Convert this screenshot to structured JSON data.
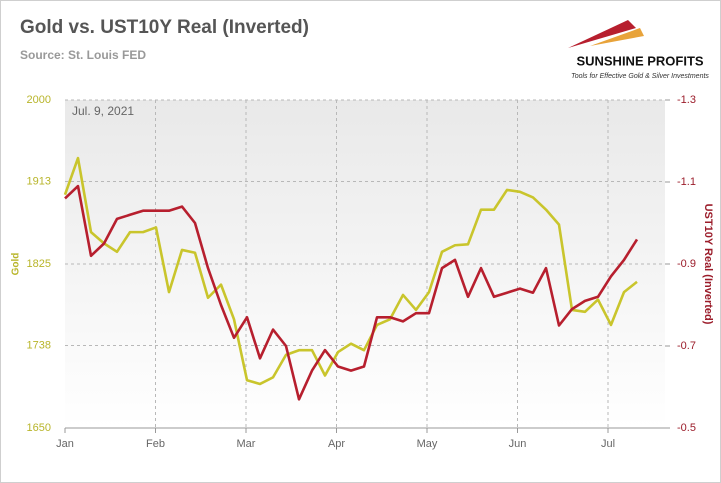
{
  "chart_data": {
    "type": "line",
    "title": "Gold vs. UST10Y Real (Inverted)",
    "subtitle": "Source: St. Louis FED",
    "annotation": "Jul. 9, 2021",
    "logo": "SUNSHINE PROFITS",
    "logo_tagline": "Tools for Effective Gold & Silver Investments",
    "ylabel": "Gold",
    "y2label": "UST10Y Real (Inverted)",
    "x_labels": [
      "Jan",
      "Feb",
      "Mar",
      "Apr",
      "May",
      "Jun",
      "Jul"
    ],
    "ylim": [
      1650,
      2000
    ],
    "yticks": [
      1650,
      1738,
      1825,
      1913,
      2000
    ],
    "y2lim": [
      -0.5,
      -1.3
    ],
    "y2ticks": [
      -0.5,
      -0.7,
      -0.9,
      -1.1,
      -1.3
    ],
    "grid": true,
    "series": [
      {
        "name": "Gold",
        "color": "#c9c52c",
        "values": [
          1899,
          1938,
          1859,
          1847,
          1838,
          1859,
          1859,
          1864,
          1795,
          1840,
          1837,
          1789,
          1803,
          1766,
          1701,
          1697,
          1704,
          1728,
          1733,
          1733,
          1706,
          1731,
          1740,
          1733,
          1760,
          1766,
          1792,
          1776,
          1795,
          1838,
          1845,
          1846,
          1883,
          1883,
          1904,
          1902,
          1896,
          1883,
          1867,
          1776,
          1774,
          1787,
          1760,
          1795,
          1806
        ]
      },
      {
        "name": "UST10Y Real (Inverted)",
        "color": "#b71f2e",
        "axis": "y2",
        "values": [
          -1.06,
          -1.09,
          -0.92,
          -0.95,
          -1.01,
          -1.02,
          -1.03,
          -1.03,
          -1.03,
          -1.04,
          -1.0,
          -0.89,
          -0.8,
          -0.72,
          -0.77,
          -0.67,
          -0.74,
          -0.7,
          -0.57,
          -0.64,
          -0.69,
          -0.65,
          -0.64,
          -0.65,
          -0.77,
          -0.77,
          -0.76,
          -0.78,
          -0.78,
          -0.89,
          -0.91,
          -0.82,
          -0.89,
          -0.82,
          -0.83,
          -0.84,
          -0.83,
          -0.89,
          -0.75,
          -0.79,
          -0.81,
          -0.82,
          -0.87,
          -0.91,
          -0.96
        ]
      }
    ]
  }
}
